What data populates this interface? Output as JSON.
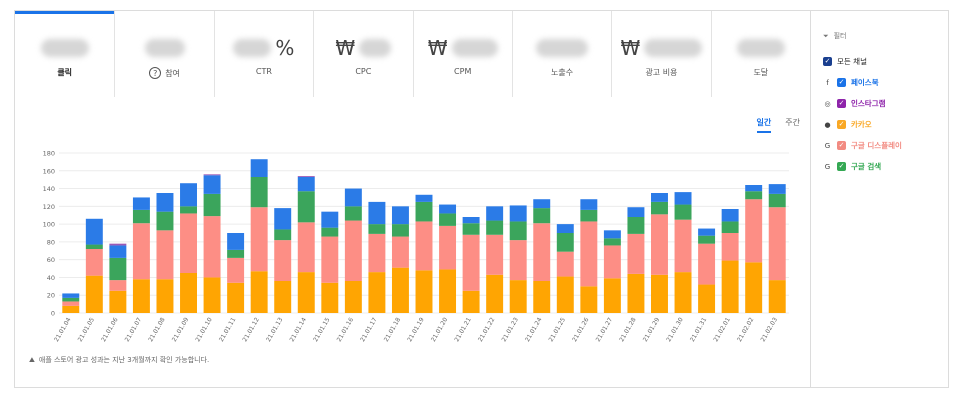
{
  "metrics": [
    {
      "label": "클릭",
      "prefix": "",
      "suffix": "",
      "blur_width": 48,
      "active": true,
      "help": false
    },
    {
      "label": "참여",
      "prefix": "",
      "suffix": "",
      "blur_width": 40,
      "active": false,
      "help": true
    },
    {
      "label": "CTR",
      "prefix": "",
      "suffix": "%",
      "blur_width": 38,
      "active": false,
      "help": false
    },
    {
      "label": "CPC",
      "prefix": "₩",
      "suffix": "",
      "blur_width": 32,
      "active": false,
      "help": false
    },
    {
      "label": "CPM",
      "prefix": "₩",
      "suffix": "",
      "blur_width": 46,
      "active": false,
      "help": false
    },
    {
      "label": "노출수",
      "prefix": "",
      "suffix": "",
      "blur_width": 52,
      "active": false,
      "help": false
    },
    {
      "label": "광고 비용",
      "prefix": "₩",
      "suffix": "",
      "blur_width": 58,
      "active": false,
      "help": false
    },
    {
      "label": "도달",
      "prefix": "",
      "suffix": "",
      "blur_width": 48,
      "active": false,
      "help": false
    }
  ],
  "period": {
    "daily": "일간",
    "weekly": "주간"
  },
  "note": "애플 스토어 광고 성과는 지난 3개월까지 확인 가능합니다.",
  "filter": {
    "title": "필터",
    "all_label": "모든 채널",
    "channels": [
      {
        "name": "페이스북",
        "icon": "facebook-icon",
        "glyph": "f",
        "color": "#1a73e8"
      },
      {
        "name": "인스타그램",
        "icon": "instagram-icon",
        "glyph": "◎",
        "color": "#8e24aa"
      },
      {
        "name": "카카오",
        "icon": "kakao-icon",
        "glyph": "●",
        "color": "#f9a825"
      },
      {
        "name": "구글 디스플레이",
        "icon": "google-icon",
        "glyph": "G",
        "color": "#f28b82"
      },
      {
        "name": "구글 검색",
        "icon": "google-icon",
        "glyph": "G",
        "color": "#34a853"
      }
    ]
  },
  "chart_data": {
    "type": "bar",
    "stacked": true,
    "ylim": [
      0,
      180
    ],
    "yticks": [
      0,
      20,
      40,
      60,
      80,
      100,
      120,
      140,
      160,
      180
    ],
    "categories": [
      "21.01.04",
      "21.01.05",
      "21.01.06",
      "21.01.07",
      "21.01.08",
      "21.01.09",
      "21.01.10",
      "21.01.11",
      "21.01.12",
      "21.01.13",
      "21.01.14",
      "21.01.15",
      "21.01.16",
      "21.01.17",
      "21.01.18",
      "21.01.19",
      "21.01.20",
      "21.01.21",
      "21.01.22",
      "21.01.23",
      "21.01.24",
      "21.01.25",
      "21.01.26",
      "21.01.27",
      "21.01.28",
      "21.01.29",
      "21.01.30",
      "21.01.31",
      "21.02.01",
      "21.02.02",
      "21.02.03"
    ],
    "series": [
      {
        "name": "카카오",
        "color": "#ffa502",
        "values": [
          8,
          42,
          25,
          38,
          38,
          45,
          40,
          34,
          47,
          36,
          46,
          34,
          36,
          46,
          51,
          48,
          49,
          25,
          43,
          37,
          36,
          41,
          30,
          39,
          44,
          43,
          46,
          32,
          59,
          57,
          37
        ]
      },
      {
        "name": "구글 디스플레이",
        "color": "#fd8e85",
        "values": [
          5,
          30,
          12,
          63,
          55,
          67,
          69,
          28,
          72,
          46,
          56,
          52,
          68,
          43,
          35,
          55,
          49,
          63,
          45,
          45,
          65,
          28,
          73,
          37,
          45,
          68,
          59,
          46,
          31,
          71,
          82
        ]
      },
      {
        "name": "구글 검색",
        "color": "#3ba55c",
        "values": [
          4,
          5,
          25,
          15,
          21,
          8,
          25,
          9,
          34,
          12,
          35,
          10,
          16,
          11,
          14,
          22,
          14,
          13,
          16,
          21,
          17,
          21,
          13,
          8,
          19,
          14,
          17,
          9,
          13,
          9,
          15
        ]
      },
      {
        "name": "페이스북",
        "color": "#2b7be7",
        "values": [
          5,
          29,
          14,
          14,
          21,
          26,
          21,
          19,
          20,
          24,
          16,
          18,
          20,
          25,
          20,
          8,
          10,
          7,
          16,
          18,
          10,
          10,
          12,
          9,
          11,
          10,
          14,
          8,
          14,
          7,
          11
        ]
      },
      {
        "name": "인스타그램",
        "color": "#9b59b6",
        "values": [
          0,
          0,
          2,
          0,
          0,
          0,
          1,
          0,
          0,
          0,
          1,
          0,
          0,
          0,
          0,
          0,
          0,
          0,
          0,
          0,
          0,
          0,
          0,
          0,
          0,
          0,
          0,
          0,
          0,
          0,
          0
        ]
      }
    ]
  }
}
